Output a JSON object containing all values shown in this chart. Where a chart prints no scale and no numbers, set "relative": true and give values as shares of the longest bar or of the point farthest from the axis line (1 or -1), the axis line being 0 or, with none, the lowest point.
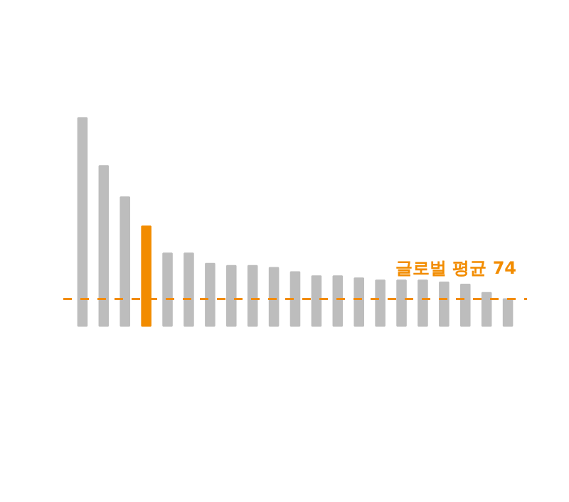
{
  "chart_data": {
    "type": "bar",
    "relative": true,
    "categories": [
      null,
      null,
      null,
      null,
      null,
      null,
      null,
      null,
      null,
      null,
      null,
      null,
      null,
      null,
      null,
      null,
      null,
      null,
      null,
      null,
      null
    ],
    "values": [
      1,
      0.77,
      0.62,
      0.48,
      0.35,
      0.35,
      0.3,
      0.29,
      0.29,
      0.28,
      0.26,
      0.24,
      0.24,
      0.23,
      0.22,
      0.22,
      0.22,
      0.21,
      0.2,
      0.16,
      0.13
    ],
    "colors": [
      "#bdbdbd",
      "#bdbdbd",
      "#bdbdbd",
      "#f28c00",
      "#bdbdbd",
      "#bdbdbd",
      "#bdbdbd",
      "#bdbdbd",
      "#bdbdbd",
      "#bdbdbd",
      "#bdbdbd",
      "#bdbdbd",
      "#bdbdbd",
      "#bdbdbd",
      "#bdbdbd",
      "#bdbdbd",
      "#bdbdbd",
      "#bdbdbd",
      "#bdbdbd",
      "#bdbdbd",
      "#bdbdbd"
    ],
    "ref_lines": [
      {
        "axis": "y",
        "value": 0.13,
        "label": "글로벌 평균 74",
        "color": "#f28c00",
        "line_style": "dashed"
      }
    ],
    "grid": false
  }
}
